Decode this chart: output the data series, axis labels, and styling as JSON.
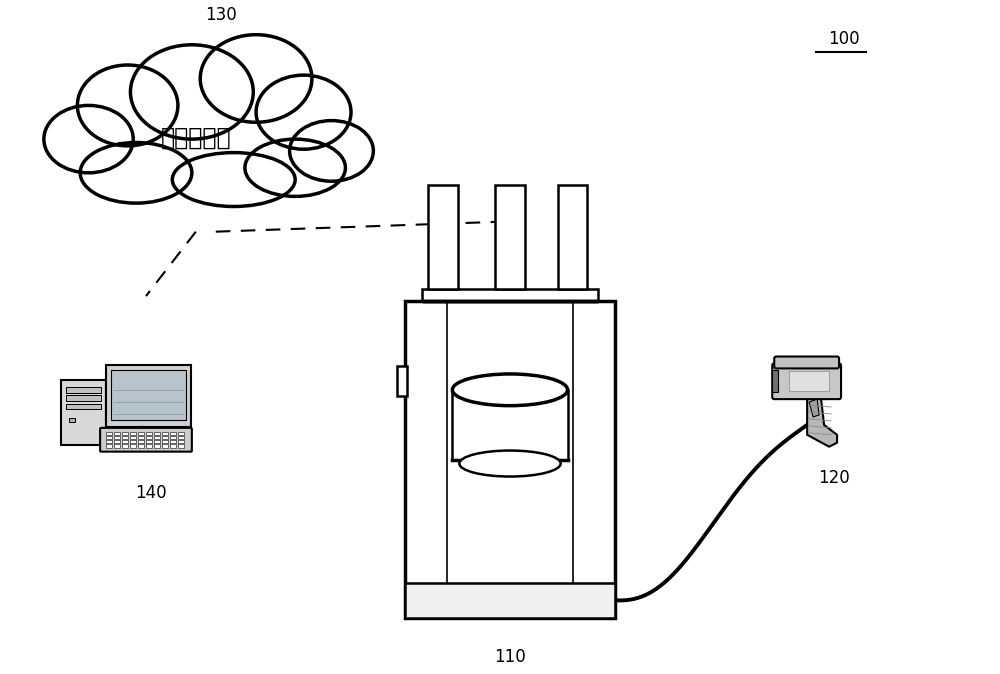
{
  "background_color": "#ffffff",
  "label_100": "100",
  "label_110": "110",
  "label_120": "120",
  "label_130": "130",
  "label_140": "140",
  "cloud_text": "云端服务器",
  "line_color": "#000000"
}
